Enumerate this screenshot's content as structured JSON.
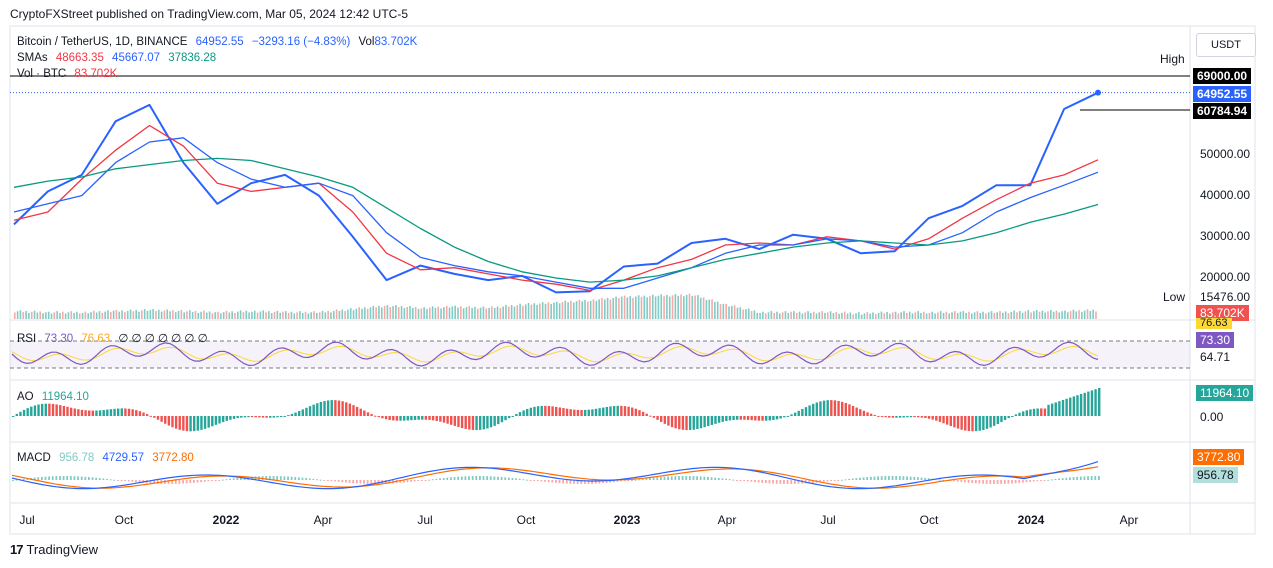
{
  "publisher_line": "CryptoFXStreet published on TradingView.com, Mar 05, 2024 12:42 UTC-5",
  "currency_button": "USDT",
  "legend": {
    "symbol": "Bitcoin / TetherUS, 1D, BINANCE",
    "price": "64952.55",
    "change": "−3293.16 (−4.83%)",
    "vol": "Vol",
    "vol_value": "83.702K",
    "smas_label": "SMAs",
    "sma1": "48663.35",
    "sma2": "45667.07",
    "sma3": "37836.28",
    "volbtc_label": "Vol · BTC",
    "volbtc_value": "83.702K"
  },
  "price_axis": {
    "high_label": "High",
    "high_value": "69000.00",
    "last_price": "64952.55",
    "level_60784": "60784.94",
    "ticks": [
      "50000.00",
      "40000.00",
      "30000.00",
      "20000.00"
    ],
    "low_label": "Low",
    "low_value": "15476.00",
    "volume_badge": "83.702K"
  },
  "rsi": {
    "label": "RSI",
    "v1": "73.30",
    "v2": "76.63",
    "rest": "∅ ∅ ∅ ∅ ∅ ∅ ∅",
    "axis_top": "76.63",
    "axis_value": "73.30",
    "axis_low": "64.71"
  },
  "ao": {
    "label": "AO",
    "value": "11964.10",
    "axis_value": "11964.10",
    "axis_zero": "0.00"
  },
  "macd": {
    "label": "MACD",
    "v1": "956.78",
    "v2": "4729.57",
    "v3": "3772.80",
    "axis_signal": "3772.80",
    "axis_hist": "956.78"
  },
  "time_axis": [
    "Jul",
    "Oct",
    "2022",
    "Apr",
    "Jul",
    "Oct",
    "2023",
    "Apr",
    "Jul",
    "Oct",
    "2024",
    "Apr"
  ],
  "footer": "TradingView",
  "colors": {
    "price": "#2962ff",
    "sma1": "#f23645",
    "sma2": "#2962ff",
    "sma3": "#089981",
    "up": "#26a69a",
    "down": "#ef5350",
    "rsi_line": "#7e57c2",
    "rsi_ma": "#fdd835",
    "macd": "#2962ff",
    "signal": "#ff6d00"
  },
  "chart_data": {
    "type": "line",
    "title": "Bitcoin / TetherUS, 1D, BINANCE",
    "x": [
      "2021-07",
      "2021-08",
      "2021-09",
      "2021-10",
      "2021-11",
      "2021-12",
      "2022-01",
      "2022-02",
      "2022-03",
      "2022-04",
      "2022-05",
      "2022-06",
      "2022-07",
      "2022-08",
      "2022-09",
      "2022-10",
      "2022-11",
      "2022-12",
      "2023-01",
      "2023-02",
      "2023-03",
      "2023-04",
      "2023-05",
      "2023-06",
      "2023-07",
      "2023-08",
      "2023-09",
      "2023-10",
      "2023-11",
      "2023-12",
      "2024-01",
      "2024-02",
      "2024-03"
    ],
    "series": [
      {
        "name": "Bitcoin / TetherUS",
        "values": [
          33000,
          41000,
          45000,
          58000,
          62000,
          48000,
          38000,
          43000,
          45000,
          40000,
          30000,
          19500,
          23000,
          21000,
          19500,
          20500,
          16500,
          16800,
          22800,
          23500,
          28500,
          29500,
          27000,
          30500,
          29500,
          26000,
          26500,
          34500,
          37500,
          42500,
          42500,
          61000,
          64952.55
        ]
      },
      {
        "name": "SMA 48663.35",
        "values": [
          34000,
          36000,
          44000,
          51000,
          57000,
          52000,
          43000,
          41000,
          42000,
          43000,
          36000,
          26000,
          22000,
          22500,
          21000,
          19500,
          18500,
          17000,
          19500,
          22500,
          24500,
          28000,
          28500,
          28000,
          30000,
          29000,
          27000,
          29500,
          34500,
          39000,
          43000,
          45000,
          48663.35
        ]
      },
      {
        "name": "SMA 45667.07",
        "values": [
          36000,
          38000,
          40000,
          48000,
          53000,
          54000,
          48000,
          44000,
          42000,
          43000,
          40000,
          31000,
          25000,
          23000,
          21500,
          20500,
          19000,
          17500,
          17500,
          20000,
          22500,
          26000,
          28000,
          28000,
          29500,
          29000,
          27500,
          28000,
          31000,
          36000,
          39500,
          42500,
          45667.07
        ]
      },
      {
        "name": "SMA 37836.28",
        "values": [
          42000,
          43500,
          44500,
          46500,
          47500,
          48500,
          49000,
          48500,
          46500,
          44500,
          42000,
          37000,
          32000,
          27500,
          24000,
          21500,
          20000,
          19000,
          19500,
          20500,
          22500,
          24500,
          26000,
          27500,
          28500,
          29000,
          28500,
          28000,
          29000,
          31000,
          33500,
          35500,
          37836.28
        ]
      }
    ],
    "volume": [
      6,
      5,
      5,
      6,
      7,
      6,
      5,
      6,
      5,
      5,
      8,
      11,
      9,
      10,
      9,
      12,
      14,
      16,
      19,
      20,
      21,
      12,
      5,
      5,
      5,
      4,
      5,
      5,
      5,
      5,
      6,
      6,
      7
    ],
    "ylim": [
      15476,
      69000
    ],
    "high": 69000,
    "low": 15476,
    "last": 64952.55
  }
}
